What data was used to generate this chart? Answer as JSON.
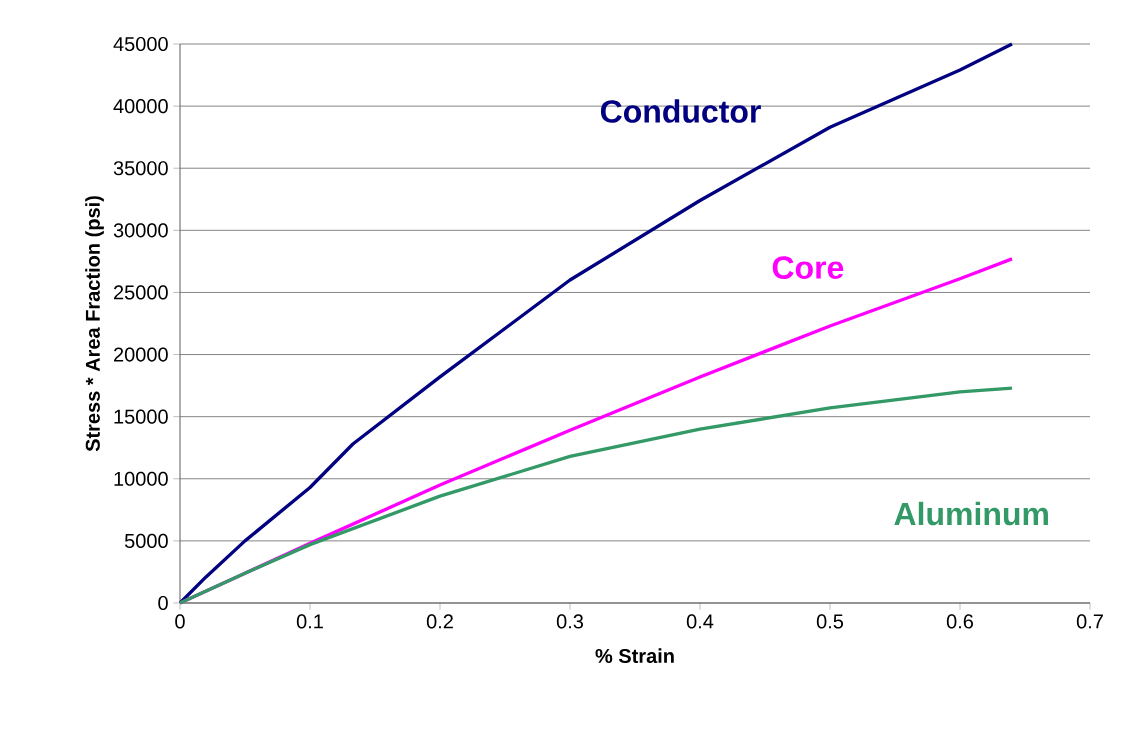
{
  "chart_data": {
    "type": "line",
    "xlabel": "% Strain",
    "ylabel": "Stress * Area Fraction (psi)",
    "xlim": [
      0,
      0.7
    ],
    "xticks": [
      0,
      0.1,
      0.2,
      0.3,
      0.4,
      0.5,
      0.6,
      0.7
    ],
    "ylim": [
      0,
      45000
    ],
    "yticks": [
      0,
      5000,
      10000,
      15000,
      20000,
      25000,
      30000,
      35000,
      40000,
      45000
    ],
    "grid": "y",
    "legend": false,
    "marker": "none",
    "line_style": "solid",
    "series": [
      {
        "name": "Conductor",
        "color": "#000080",
        "x": [
          0,
          0.02,
          0.05,
          0.1,
          0.133,
          0.2,
          0.3,
          0.4,
          0.5,
          0.6,
          0.64
        ],
        "values": [
          0,
          2100,
          5000,
          9300,
          12800,
          18200,
          26000,
          32400,
          38300,
          42900,
          45000
        ]
      },
      {
        "name": "Core",
        "color": "#ff00ff",
        "x": [
          0,
          0.05,
          0.1,
          0.2,
          0.3,
          0.4,
          0.5,
          0.6,
          0.64
        ],
        "values": [
          0,
          2400,
          4800,
          9500,
          13900,
          18200,
          22300,
          26100,
          27700
        ]
      },
      {
        "name": "Aluminum",
        "color": "#339966",
        "x": [
          0,
          0.05,
          0.1,
          0.2,
          0.3,
          0.4,
          0.5,
          0.6,
          0.64
        ],
        "values": [
          0,
          2400,
          4700,
          8600,
          11800,
          14000,
          15700,
          17000,
          17300
        ]
      }
    ]
  }
}
